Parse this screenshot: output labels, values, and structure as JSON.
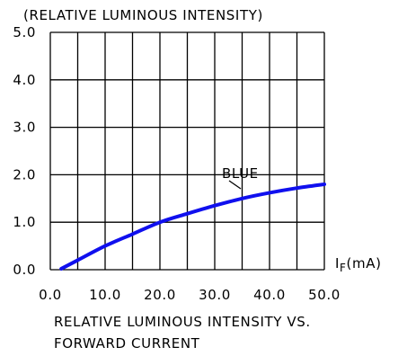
{
  "chart_data": {
    "type": "line",
    "title": "(RELATIVE LUMINOUS INTENSITY)",
    "caption": [
      "RELATIVE LUMINOUS INTENSITY VS.",
      "FORWARD CURRENT"
    ],
    "xlabel": {
      "main": "I",
      "subscript": "F",
      "unit": "(mA)"
    },
    "ylabel": "",
    "xlim": [
      0,
      50
    ],
    "ylim": [
      0,
      5
    ],
    "x_ticks": [
      0,
      10,
      20,
      30,
      40,
      50
    ],
    "x_tick_labels": [
      "0.0",
      "10.0",
      "20.0",
      "30.0",
      "40.0",
      "50.0"
    ],
    "y_ticks": [
      0,
      1,
      2,
      3,
      4,
      5
    ],
    "y_tick_labels": [
      "0.0",
      "1.0",
      "2.0",
      "3.0",
      "4.0",
      "5.0"
    ],
    "x_grid": [
      0,
      5,
      10,
      15,
      20,
      25,
      30,
      35,
      40,
      45,
      50
    ],
    "y_grid": [
      0,
      1,
      2,
      3,
      4,
      5
    ],
    "grid": true,
    "series": [
      {
        "name": "BLUE",
        "color": "#1010ee",
        "x": [
          2,
          5,
          10,
          15,
          20,
          25,
          30,
          35,
          40,
          45,
          50
        ],
        "y": [
          0.02,
          0.2,
          0.5,
          0.75,
          1.0,
          1.18,
          1.35,
          1.5,
          1.62,
          1.72,
          1.8
        ]
      }
    ]
  }
}
